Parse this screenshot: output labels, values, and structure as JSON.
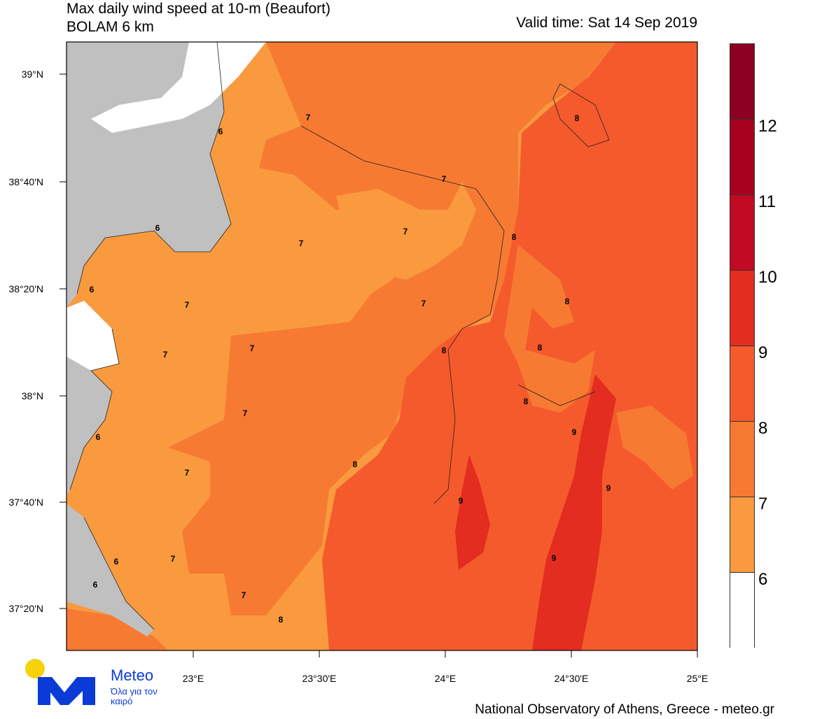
{
  "header": {
    "title_line1": "Max daily wind speed at 10-m (Beaufort)",
    "title_line2": "BOLAM 6 km",
    "valid_time": "Valid time: Sat 14 Sep 2019"
  },
  "axes": {
    "lat_labels": [
      "39°N",
      "38°40'N",
      "38°20'N",
      "38°N",
      "37°40'N",
      "37°20'N"
    ],
    "lon_labels": [
      "23°E",
      "23°30'E",
      "24°E",
      "24°30'E",
      "25°E"
    ]
  },
  "colorbar": {
    "labels": [
      "12",
      "11",
      "10",
      "9",
      "8",
      "7",
      "6"
    ],
    "colors": [
      "#8b0022",
      "#a8001f",
      "#c20a24",
      "#e32d20",
      "#f55a2c",
      "#f77a33",
      "#f99a3e",
      "#ffffff"
    ]
  },
  "contour_labels": [
    "7",
    "6",
    "7",
    "8",
    "7",
    "7",
    "8",
    "6",
    "7",
    "6",
    "8",
    "7",
    "7",
    "8",
    "8",
    "7",
    "8",
    "7",
    "6",
    "9",
    "7",
    "8",
    "9",
    "6",
    "7",
    "9",
    "9",
    "6",
    "7",
    "8"
  ],
  "footer": {
    "brand": "Meteo",
    "slogan": "Όλα για τον καιρό",
    "credit": "National Observatory of Athens, Greece - meteo.gr"
  }
}
